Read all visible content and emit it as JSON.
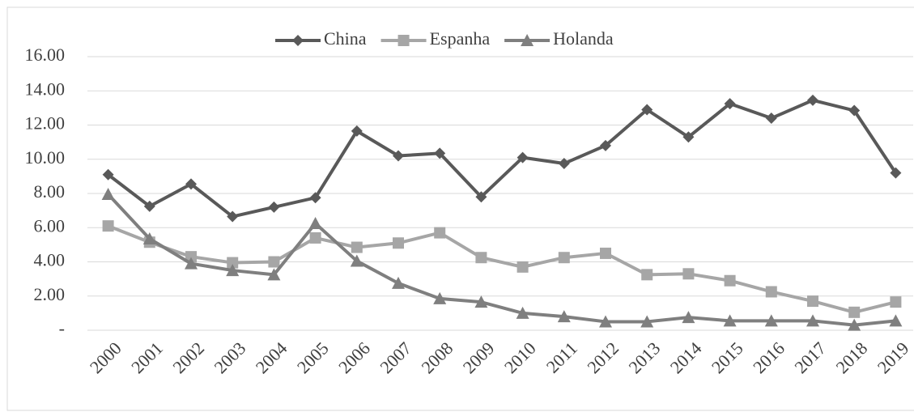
{
  "chart_data": {
    "type": "line",
    "categories": [
      "2000",
      "2001",
      "2002",
      "2003",
      "2004",
      "2005",
      "2006",
      "2007",
      "2008",
      "2009",
      "2010",
      "2011",
      "2012",
      "2013",
      "2014",
      "2015",
      "2016",
      "2017",
      "2018",
      "2019"
    ],
    "series": [
      {
        "name": "China",
        "color": "#595959",
        "marker": "diamond",
        "values": [
          9.1,
          7.25,
          8.55,
          6.65,
          7.2,
          7.75,
          11.65,
          10.2,
          10.35,
          7.8,
          10.1,
          9.75,
          10.8,
          12.9,
          11.3,
          13.25,
          12.4,
          13.45,
          12.85,
          9.2
        ]
      },
      {
        "name": "Espanha",
        "color": "#a6a6a6",
        "marker": "square",
        "values": [
          6.1,
          5.15,
          4.3,
          3.95,
          4.0,
          5.4,
          4.85,
          5.1,
          5.7,
          4.25,
          3.7,
          4.25,
          4.5,
          3.25,
          3.3,
          2.9,
          2.25,
          1.7,
          1.05,
          1.65
        ]
      },
      {
        "name": "Holanda",
        "color": "#7f7f7f",
        "marker": "triangle",
        "values": [
          7.95,
          5.35,
          3.9,
          3.5,
          3.25,
          6.25,
          4.05,
          2.75,
          1.85,
          1.65,
          1.0,
          0.8,
          0.5,
          0.5,
          0.75,
          0.55,
          0.55,
          0.55,
          0.3,
          0.55
        ]
      }
    ],
    "ylim": [
      0,
      16
    ],
    "yticks": [
      {
        "value": 0,
        "label": "-"
      },
      {
        "value": 2,
        "label": "2.00"
      },
      {
        "value": 4,
        "label": "4.00"
      },
      {
        "value": 6,
        "label": "6.00"
      },
      {
        "value": 8,
        "label": "8.00"
      },
      {
        "value": 10,
        "label": "10.00"
      },
      {
        "value": 12,
        "label": "12.00"
      },
      {
        "value": 14,
        "label": "14.00"
      },
      {
        "value": 16,
        "label": "16.00"
      }
    ],
    "grid": true,
    "legend": "top"
  }
}
